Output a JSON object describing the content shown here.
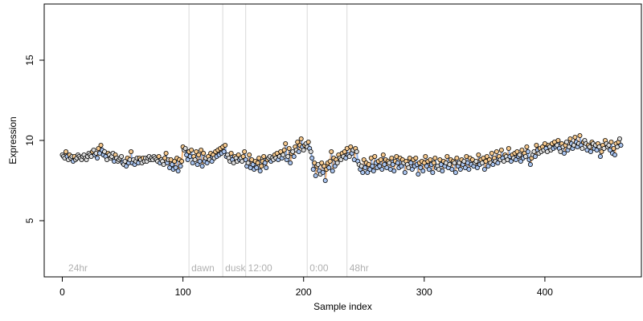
{
  "chart_data": {
    "type": "scatter",
    "title": "",
    "xlabel": "Sample index",
    "ylabel": "Expression",
    "xlim": [
      -15,
      480
    ],
    "ylim": [
      1.5,
      18.5
    ],
    "x_ticks": [
      0,
      100,
      200,
      300,
      400
    ],
    "y_ticks": [
      5,
      10,
      15
    ],
    "grid": false,
    "legend": "none",
    "colors": {
      "point_stroke": "#000000",
      "line_orange": "#f0a860",
      "line_blue": "#7aa4e6",
      "fill_orange": "#f6c98e",
      "fill_blue": "#a9c4ef",
      "fill_gray": "#dcdcdc",
      "divider": "#d9d9d9",
      "phase_text": "#b0b0b0"
    },
    "phase_markers": [
      {
        "x": 3,
        "label": "24hr",
        "line": false
      },
      {
        "x": 105,
        "label": "dawn",
        "line": true
      },
      {
        "x": 133,
        "label": "dusk",
        "line": true
      },
      {
        "x": 152,
        "label": "12:00",
        "line": true
      },
      {
        "x": 203,
        "label": "0:00",
        "line": true
      },
      {
        "x": 236,
        "label": "48hr",
        "line": true
      }
    ],
    "series": [
      {
        "x_start": 0,
        "x_step": 1,
        "values": [
          9.1,
          9.0,
          8.9,
          9.3,
          9.0,
          8.8,
          9.1,
          8.9,
          9.0,
          8.7,
          9.0,
          8.8,
          8.9,
          9.1,
          9.0,
          8.9,
          8.8,
          9.0,
          9.1,
          8.9,
          8.8,
          9.0,
          9.2,
          9.1,
          9.0,
          9.3,
          9.4,
          9.1,
          9.2,
          8.9,
          9.5,
          9.2,
          9.7,
          9.4,
          9.1,
          9.3,
          9.0,
          8.8,
          9.2,
          9.1,
          8.9,
          9.0,
          9.2,
          8.7,
          9.1,
          8.9,
          8.7,
          8.8,
          8.9,
          9.0,
          8.6,
          8.5,
          8.7,
          8.4,
          8.9,
          8.6,
          8.8,
          9.3,
          8.6,
          8.8,
          8.5,
          8.7,
          8.9,
          8.6,
          8.9,
          8.8,
          8.6,
          8.9,
          8.7,
          8.9,
          8.7,
          8.9,
          9.0,
          8.8,
          8.9,
          8.8,
          9.0,
          8.9,
          8.8,
          8.7,
          9.0,
          8.6,
          8.8,
          8.7,
          8.5,
          8.9,
          9.2,
          8.6,
          8.8,
          8.3,
          8.8,
          8.5,
          8.2,
          8.7,
          8.3,
          8.9,
          8.1,
          8.8,
          8.4,
          8.7,
          9.6,
          9.4,
          9.5,
          9.1,
          8.8,
          9.3,
          9.0,
          9.4,
          8.6,
          9.0,
          8.8,
          9.3,
          8.5,
          9.1,
          8.7,
          9.4,
          8.4,
          9.2,
          8.7,
          8.9,
          8.6,
          9.0,
          8.8,
          9.2,
          8.7,
          9.1,
          8.9,
          9.3,
          9.0,
          9.4,
          9.1,
          9.5,
          9.2,
          9.6,
          9.3,
          9.7,
          9.0,
          9.1,
          8.9,
          8.7,
          9.2,
          8.8,
          8.6,
          9.0,
          8.9,
          8.7,
          9.1,
          8.8,
          8.9,
          8.7,
          9.0,
          9.3,
          8.8,
          8.4,
          8.6,
          9.1,
          8.3,
          8.8,
          8.5,
          8.2,
          8.7,
          8.3,
          8.6,
          8.9,
          8.1,
          8.4,
          8.7,
          9.0,
          8.6,
          8.3,
          8.8,
          8.9,
          9.0,
          8.7,
          8.9,
          8.8,
          9.1,
          8.9,
          9.2,
          8.8,
          9.0,
          9.3,
          8.9,
          9.1,
          9.4,
          9.8,
          8.8,
          9.0,
          9.5,
          8.6,
          9.2,
          9.3,
          9.0,
          9.6,
          9.4,
          9.9,
          9.3,
          9.7,
          10.1,
          9.6,
          9.4,
          9.7,
          9.8,
          9.6,
          9.9,
          9.5,
          9.3,
          8.9,
          8.2,
          8.6,
          7.8,
          8.4,
          8.5,
          8.1,
          7.9,
          8.6,
          8.0,
          8.4,
          7.5,
          8.2,
          8.6,
          8.3,
          8.7,
          9.3,
          8.1,
          8.9,
          8.4,
          8.8,
          8.6,
          9.1,
          8.9,
          8.8,
          9.2,
          9.0,
          9.3,
          8.9,
          9.5,
          9.1,
          9.0,
          9.6,
          9.2,
          9.4,
          8.8,
          9.5,
          9.3,
          8.7,
          8.5,
          8.2,
          8.4,
          8.0,
          8.8,
          8.3,
          8.6,
          8.0,
          8.5,
          8.2,
          8.9,
          8.4,
          8.1,
          9.0,
          8.6,
          8.3,
          8.7,
          8.4,
          8.8,
          8.2,
          9.1,
          8.5,
          8.8,
          8.3,
          8.7,
          8.6,
          8.2,
          8.9,
          8.5,
          8.1,
          8.7,
          9.0,
          8.6,
          8.3,
          8.9,
          8.4,
          8.8,
          8.6,
          8.0,
          8.7,
          8.5,
          8.3,
          8.9,
          8.6,
          8.2,
          8.8,
          8.4,
          8.9,
          8.5,
          7.9,
          8.6,
          8.3,
          8.7,
          8.1,
          8.6,
          9.0,
          8.4,
          8.7,
          8.2,
          8.8,
          8.5,
          8.0,
          8.6,
          8.9,
          8.3,
          8.4,
          8.2,
          8.8,
          8.5,
          8.1,
          8.7,
          8.4,
          8.6,
          9.0,
          8.3,
          8.5,
          8.8,
          8.2,
          8.7,
          8.6,
          8.0,
          8.9,
          8.4,
          8.6,
          8.2,
          8.8,
          8.5,
          8.7,
          8.3,
          9.0,
          8.6,
          8.2,
          8.9,
          8.5,
          8.8,
          8.4,
          8.6,
          8.7,
          8.3,
          9.1,
          8.5,
          8.8,
          8.6,
          8.9,
          8.2,
          8.7,
          9.0,
          8.4,
          8.8,
          8.6,
          9.2,
          8.5,
          8.9,
          8.7,
          9.3,
          8.6,
          9.0,
          8.8,
          9.4,
          8.9,
          8.7,
          9.1,
          9.0,
          8.8,
          9.5,
          9.0,
          8.7,
          9.1,
          8.9,
          9.2,
          8.8,
          9.3,
          9.0,
          9.1,
          8.7,
          9.4,
          8.9,
          9.2,
          9.0,
          9.6,
          9.3,
          8.8,
          8.5,
          8.9,
          9.1,
          9.3,
          9.0,
          9.7,
          9.4,
          9.2,
          9.5,
          9.3,
          9.6,
          9.4,
          9.8,
          9.5,
          9.3,
          9.7,
          9.6,
          9.4,
          9.8,
          9.5,
          9.9,
          9.6,
          9.7,
          10.0,
          9.5,
          9.3,
          9.8,
          9.6,
          9.2,
          9.7,
          9.9,
          9.4,
          9.6,
          10.1,
          9.8,
          9.5,
          9.7,
          10.2,
          9.9,
          9.6,
          9.8,
          10.3,
          9.7,
          9.5,
          9.9,
          10.0,
          9.8,
          9.4,
          9.7,
          9.6,
          9.3,
          9.9,
          9.8,
          9.5,
          9.7,
          9.4,
          9.8,
          9.6,
          9.0,
          9.3,
          9.7,
          9.5,
          10.0,
          9.8,
          9.6,
          9.7,
          9.4,
          9.9,
          9.2,
          9.5,
          9.1,
          9.8,
          9.6,
          9.9,
          10.1,
          9.7
        ]
      }
    ]
  }
}
